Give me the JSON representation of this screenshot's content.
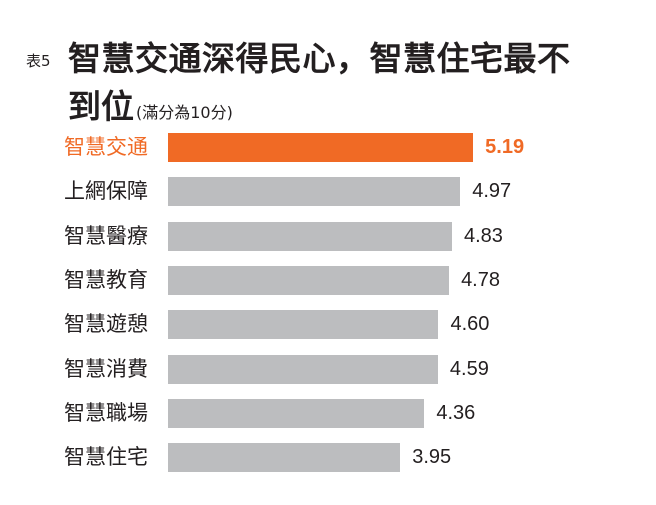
{
  "title": {
    "tag": "表5",
    "line1": "智慧交通深得民心，智慧住宅最不",
    "line2": "到位",
    "note": "(滿分為10分)"
  },
  "colors": {
    "highlight": "#f06a25",
    "bar": "#bcbdbf",
    "text": "#231f20"
  },
  "chart_data": {
    "type": "bar",
    "orientation": "horizontal",
    "title": "表5 智慧交通深得民心，智慧住宅最不到位(滿分為10分)",
    "categories": [
      "智慧交通",
      "上網保障",
      "智慧醫療",
      "智慧教育",
      "智慧遊憩",
      "智慧消費",
      "智慧職場",
      "智慧住宅"
    ],
    "values": [
      5.19,
      4.97,
      4.83,
      4.78,
      4.6,
      4.59,
      4.36,
      3.95
    ],
    "value_labels": [
      "5.19",
      "4.97",
      "4.83",
      "4.78",
      "4.60",
      "4.59",
      "4.36",
      "3.95"
    ],
    "highlight_index": 0,
    "xlabel": "",
    "ylabel": "",
    "xlim": [
      0,
      10
    ],
    "grid": false,
    "legend": false,
    "data_labels": true
  }
}
